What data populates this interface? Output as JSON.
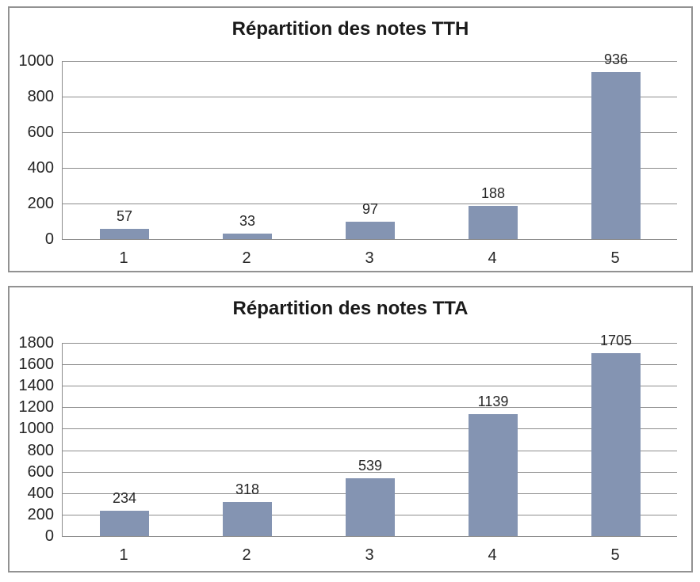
{
  "colors": {
    "bar_fill": "#8494b2",
    "gridline": "#8c8c8c",
    "axis_line": "#8c8c8c",
    "panel_border": "#929292",
    "title_text": "#1a1a1a",
    "label_text": "#262626",
    "background": "#ffffff"
  },
  "chart_data": [
    {
      "type": "bar",
      "title": "Répartition des notes TTH",
      "categories": [
        "1",
        "2",
        "3",
        "4",
        "5"
      ],
      "values": [
        57,
        33,
        97,
        188,
        936
      ],
      "value_labels": [
        "57",
        "33",
        "97",
        "188",
        "936"
      ],
      "xlabel": "",
      "ylabel": "",
      "ylim": [
        0,
        1000
      ],
      "y_max": 1000,
      "y_ticks": [
        0,
        200,
        400,
        600,
        800,
        1000
      ],
      "grid": "horizontal",
      "legend": "none"
    },
    {
      "type": "bar",
      "title": "Répartition des notes TTA",
      "categories": [
        "1",
        "2",
        "3",
        "4",
        "5"
      ],
      "values": [
        234,
        318,
        539,
        1139,
        1705
      ],
      "value_labels": [
        "234",
        "318",
        "539",
        "1139",
        "1705"
      ],
      "xlabel": "",
      "ylabel": "",
      "ylim": [
        0,
        1800
      ],
      "y_max": 1800,
      "y_ticks": [
        0,
        200,
        400,
        600,
        800,
        1000,
        1200,
        1400,
        1600,
        1800
      ],
      "grid": "horizontal",
      "legend": "none"
    }
  ]
}
